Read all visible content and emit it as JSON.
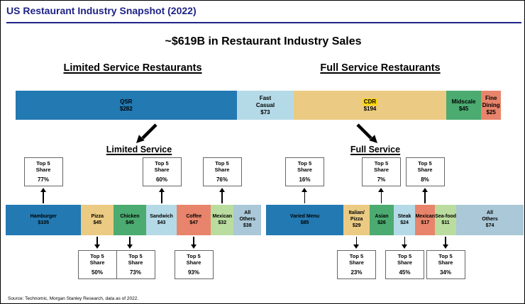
{
  "window": {
    "title": "US Restaurant Industry Snapshot (2022)"
  },
  "heading": "~$619B in Restaurant Industry Sales",
  "sections": {
    "limited": {
      "header": "Limited Service Restaurants",
      "sub_header": "Limited Service"
    },
    "full": {
      "header": "Full Service Restaurants",
      "sub_header": "Full Service"
    }
  },
  "labels": {
    "top5_share": "Top 5 Share"
  },
  "source_note": "Source: Technomic, Morgan Stanley Research, data as of 2022.",
  "colors": {
    "navy": "#1F2386",
    "highlight_yellow": "#FFD700",
    "dark_blue": "#2379B2",
    "light_blue": "#B5DAE7",
    "tan": "#EBCB83",
    "green": "#4BAB70",
    "salmon": "#E8846B",
    "light_green": "#BADD9F",
    "gray_blue": "#AAC8D7"
  },
  "chart_data": [
    {
      "type": "bar",
      "id": "industry-total",
      "title": "~$619B in Restaurant Industry Sales",
      "unit": "$B",
      "total": 619,
      "segments": [
        {
          "label": "QSR",
          "value": 282,
          "value_label": "$282",
          "color": "#2379B2",
          "group": "Limited Service Restaurants"
        },
        {
          "label": "Fast\nCasual",
          "value": 73,
          "value_label": "$73",
          "color": "#B5DAE7",
          "group": "Limited Service Restaurants"
        },
        {
          "label": "CDR",
          "value": 194,
          "value_label": "$194",
          "color": "#EBCB83",
          "group": "Full Service Restaurants",
          "label_highlight": true
        },
        {
          "label": "Midscale",
          "value": 45,
          "value_label": "$45",
          "color": "#4BAB70",
          "group": "Full Service Restaurants"
        },
        {
          "label": "Fine\nDining",
          "value": 25,
          "value_label": "$25",
          "color": "#E8846B",
          "group": "Full Service Restaurants"
        }
      ]
    },
    {
      "type": "bar",
      "id": "limited-service-categories",
      "title": "Limited Service",
      "unit": "$B",
      "segments": [
        {
          "label": "Hamburger",
          "value": 105,
          "value_label": "$105",
          "color": "#2379B2",
          "top5_share": "77%",
          "share_position": "above"
        },
        {
          "label": "Pizza",
          "value": 45,
          "value_label": "$45",
          "color": "#EBCB83",
          "top5_share": "50%",
          "share_position": "below"
        },
        {
          "label": "Chicken",
          "value": 45,
          "value_label": "$45",
          "color": "#4BAB70",
          "top5_share": "73%",
          "share_position": "below"
        },
        {
          "label": "Sandwich",
          "value": 43,
          "value_label": "$43",
          "color": "#B5DAE7",
          "top5_share": "60%",
          "share_position": "above"
        },
        {
          "label": "Coffee",
          "value": 47,
          "value_label": "$47",
          "color": "#E8846B",
          "top5_share": "93%",
          "share_position": "below"
        },
        {
          "label": "Mexican",
          "value": 32,
          "value_label": "$32",
          "color": "#BADD9F",
          "top5_share": "76%",
          "share_position": "above"
        },
        {
          "label": "All\nOthers",
          "value": 38,
          "value_label": "$38",
          "color": "#AAC8D7"
        }
      ]
    },
    {
      "type": "bar",
      "id": "full-service-categories",
      "title": "Full Service",
      "unit": "$B",
      "segments": [
        {
          "label": "Varied Menu",
          "value": 85,
          "value_label": "$85",
          "color": "#2379B2",
          "top5_share": "16%",
          "share_position": "above"
        },
        {
          "label": "Italian/\nPizza",
          "value": 29,
          "value_label": "$29",
          "color": "#EBCB83",
          "top5_share": "23%",
          "share_position": "below"
        },
        {
          "label": "Asian",
          "value": 26,
          "value_label": "$26",
          "color": "#4BAB70",
          "top5_share": "7%",
          "share_position": "above"
        },
        {
          "label": "Steak",
          "value": 24,
          "value_label": "$24",
          "color": "#B5DAE7",
          "top5_share": "45%",
          "share_position": "below"
        },
        {
          "label": "Mexican",
          "value": 17,
          "value_label": "$17",
          "color": "#E8846B",
          "top5_share": "8%",
          "share_position": "above"
        },
        {
          "label": "Sea-food",
          "value": 11,
          "value_label": "$11",
          "color": "#BADD9F",
          "top5_share": "34%",
          "share_position": "below"
        },
        {
          "label": "All\nOthers",
          "value": 74,
          "value_label": "$74",
          "color": "#AAC8D7"
        }
      ]
    }
  ]
}
